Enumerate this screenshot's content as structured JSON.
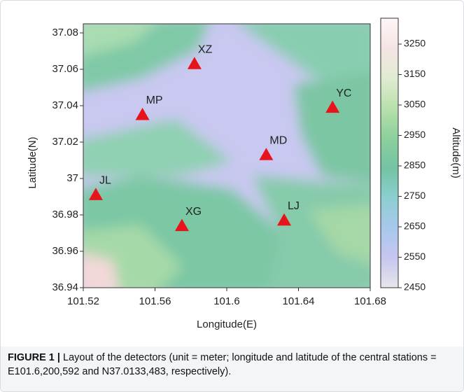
{
  "chart_data": {
    "type": "scatter",
    "xlabel": "Longitude(E)",
    "ylabel": "Latitude(N)",
    "xlim": [
      101.52,
      101.68
    ],
    "xticks": [
      101.52,
      101.56,
      101.6,
      101.64,
      101.68
    ],
    "ylim": [
      36.94,
      37.085
    ],
    "yticks": [
      36.94,
      36.96,
      36.98,
      37,
      37.02,
      37.04,
      37.06,
      37.08
    ],
    "marker_color": "#e8141c",
    "points": [
      {
        "label": "XZ",
        "x": 101.582,
        "y": 37.063
      },
      {
        "label": "MP",
        "x": 101.553,
        "y": 37.035
      },
      {
        "label": "YC",
        "x": 101.659,
        "y": 37.039
      },
      {
        "label": "MD",
        "x": 101.622,
        "y": 37.013
      },
      {
        "label": "JL",
        "x": 101.527,
        "y": 36.991
      },
      {
        "label": "XG",
        "x": 101.575,
        "y": 36.974
      },
      {
        "label": "LJ",
        "x": 101.632,
        "y": 36.977
      }
    ],
    "colorbar": {
      "label": "Altitude(m)",
      "lim": [
        2450,
        3335
      ],
      "ticks": [
        2450,
        2550,
        2650,
        2750,
        2850,
        2950,
        3050,
        3150,
        3250
      ],
      "colors": [
        "#e6e6ec",
        "#c6c6ef",
        "#a8c8ec",
        "#8ccfd0",
        "#74c3a4",
        "#8cd09c",
        "#b8e0ac",
        "#e0ecd0",
        "#f6e4e4",
        "#fdf6f6"
      ]
    }
  },
  "caption_label": "FIGURE 1 |",
  "caption_text": "Layout of the detectors (unit = meter; longitude and latitude of the central stations = E101.6,200,592 and N37.0133,483, respectively)."
}
